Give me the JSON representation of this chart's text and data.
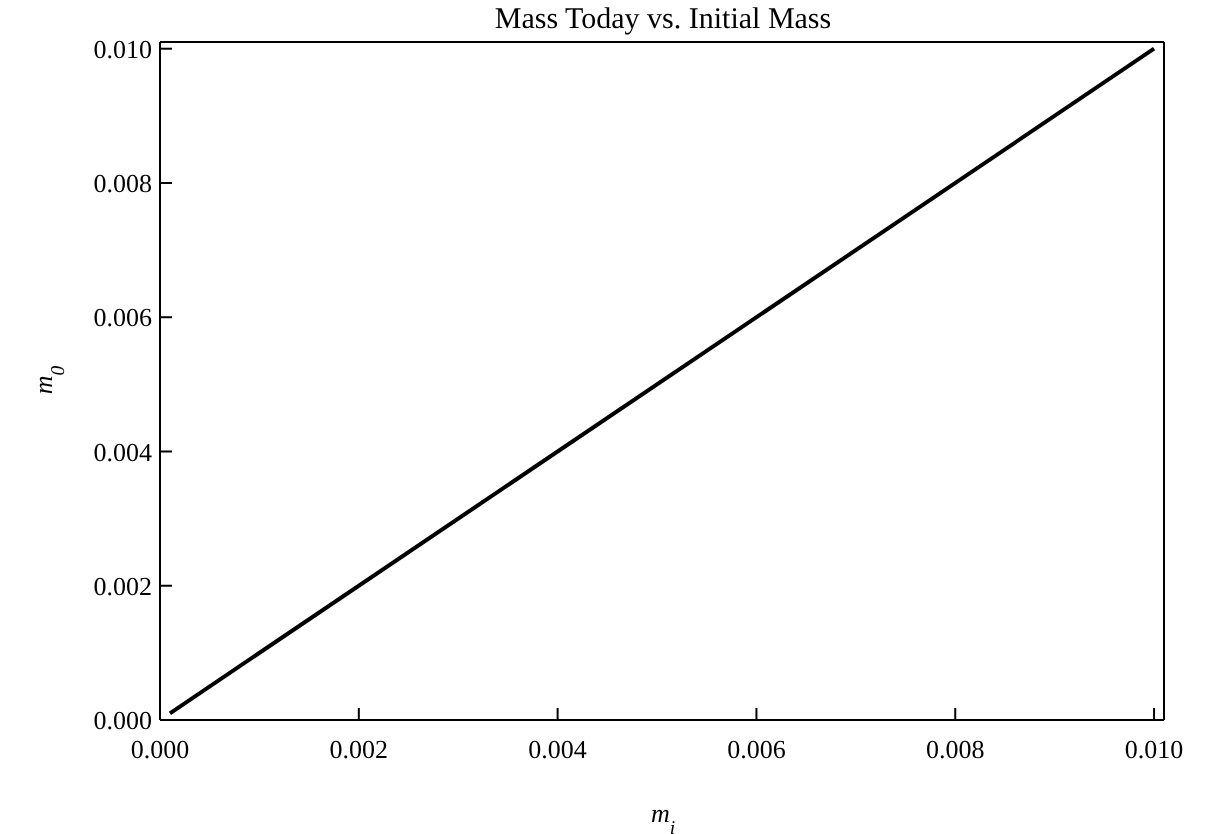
{
  "chart_data": {
    "type": "line",
    "title": "Mass Today vs. Initial Mass",
    "xlabel": "m$_{i}$",
    "ylabel": "m$_{0}$",
    "x": [
      0.0001,
      0.01
    ],
    "series": [
      {
        "color": "#000000",
        "values": [
          0.0001,
          0.01
        ]
      }
    ],
    "xlim": [
      0,
      0.0101
    ],
    "ylim": [
      0,
      0.0101
    ],
    "xticks": [
      {
        "value": 0,
        "label": "0.000"
      },
      0.002,
      0.004,
      0.006,
      0.008,
      {
        "value": 0.01,
        "label": "0.010"
      }
    ],
    "yticks": [
      {
        "value": 0,
        "label": "0.000"
      },
      0.002,
      0.004,
      0.006,
      0.008,
      {
        "value": 0.01,
        "label": "0.010"
      }
    ],
    "legend": false,
    "marker": "none",
    "line_style": "solid"
  }
}
